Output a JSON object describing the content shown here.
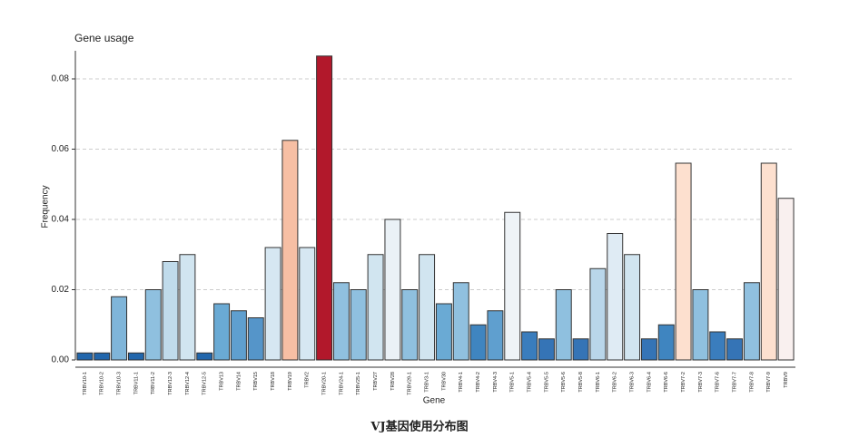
{
  "chart_data": {
    "type": "bar",
    "title": "Gene usage",
    "xlabel": "Gene",
    "ylabel": "Frequency",
    "caption": "VJ基因使用分布图",
    "categories": [
      "TRBV10-1",
      "TRBV10-2",
      "TRBV10-3",
      "TRBV11-1",
      "TRBV11-2",
      "TRBV12-3",
      "TRBV12-4",
      "TRBV12-5",
      "TRBV13",
      "TRBV14",
      "TRBV15",
      "TRBV18",
      "TRBV19",
      "TRBV2",
      "TRBV20-1",
      "TRBV24-1",
      "TRBV25-1",
      "TRBV27",
      "TRBV28",
      "TRBV29-1",
      "TRBV3-1",
      "TRBV30",
      "TRBV4-1",
      "TRBV4-2",
      "TRBV4-3",
      "TRBV5-1",
      "TRBV5-4",
      "TRBV5-5",
      "TRBV5-6",
      "TRBV5-8",
      "TRBV6-1",
      "TRBV6-2",
      "TRBV6-3",
      "TRBV6-4",
      "TRBV6-6",
      "TRBV7-2",
      "TRBV7-3",
      "TRBV7-6",
      "TRBV7-7",
      "TRBV7-8",
      "TRBV7-9",
      "TRBV9"
    ],
    "values": [
      0.002,
      0.002,
      0.018,
      0.002,
      0.02,
      0.028,
      0.03,
      0.002,
      0.016,
      0.014,
      0.012,
      0.032,
      0.0625,
      0.032,
      0.0865,
      0.022,
      0.02,
      0.03,
      0.04,
      0.02,
      0.03,
      0.016,
      0.022,
      0.01,
      0.014,
      0.042,
      0.008,
      0.006,
      0.02,
      0.006,
      0.026,
      0.036,
      0.03,
      0.006,
      0.01,
      0.056,
      0.02,
      0.008,
      0.006,
      0.022,
      0.056,
      0.046
    ],
    "colors": [
      "#2166ac",
      "#2166ac",
      "#7fb5d9",
      "#2166ac",
      "#8fc0df",
      "#c0dbeb",
      "#d1e5f0",
      "#2166ac",
      "#6aaad4",
      "#5f9fcf",
      "#5595c9",
      "#d6e7f2",
      "#f7bfa4",
      "#d6e7f2",
      "#b2182b",
      "#90c0df",
      "#8fc0df",
      "#d1e5f0",
      "#eaf1f6",
      "#8fc0df",
      "#d1e5f0",
      "#6aaad4",
      "#90c0df",
      "#3f85c0",
      "#5f9fcf",
      "#eef3f7",
      "#3a7dbd",
      "#3574b6",
      "#8fc0df",
      "#3574b6",
      "#b9d6ea",
      "#dfebf4",
      "#d1e5f0",
      "#3574b6",
      "#3f85c0",
      "#fde0cf",
      "#8fc0df",
      "#3a7dbd",
      "#3574b6",
      "#90c0df",
      "#fde0cf",
      "#f9f0ef"
    ],
    "ylim": [
      0,
      0.088
    ],
    "yticks": [
      {
        "value": 0,
        "label": "0.00"
      },
      {
        "value": 0.02,
        "label": "0.02"
      },
      {
        "value": 0.04,
        "label": "0.04"
      },
      {
        "value": 0.06,
        "label": "0.06"
      },
      {
        "value": 0.08,
        "label": "0.08"
      }
    ],
    "grid": true
  }
}
